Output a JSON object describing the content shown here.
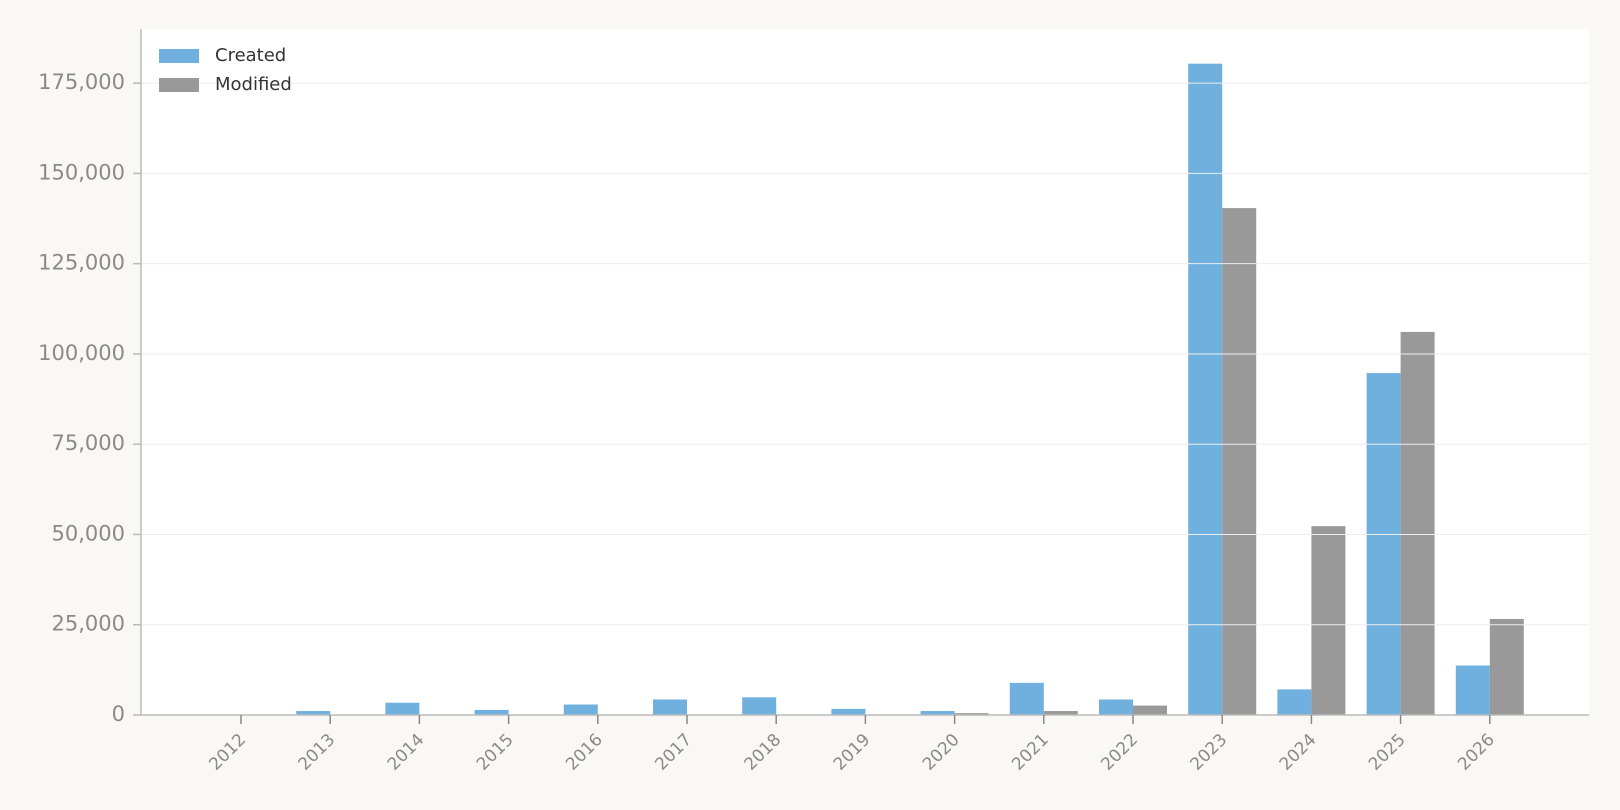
{
  "chart_data": {
    "type": "bar",
    "categories": [
      "2012",
      "2013",
      "2014",
      "2015",
      "2016",
      "2017",
      "2018",
      "2019",
      "2020",
      "2021",
      "2022",
      "2023",
      "2024",
      "2025",
      "2026"
    ],
    "series": [
      {
        "name": "Created",
        "color": "#6fb0de",
        "values": [
          0,
          1100,
          3400,
          1400,
          2900,
          4300,
          4900,
          1700,
          1100,
          8900,
          4300,
          180400,
          7100,
          94700,
          13700
        ]
      },
      {
        "name": "Modified",
        "color": "#999999",
        "values": [
          0,
          0,
          0,
          0,
          0,
          0,
          0,
          0,
          500,
          1100,
          2600,
          140400,
          52300,
          106100,
          26600
        ]
      }
    ],
    "ylim": [
      0,
      190000
    ],
    "yticks": [
      0,
      {
        "value": 25000,
        "label": "25,000"
      },
      {
        "value": 50000,
        "label": "50,000"
      },
      {
        "value": 75000,
        "label": "75,000"
      },
      {
        "value": 100000,
        "label": "100,000"
      },
      {
        "value": 125000,
        "label": "125,000"
      },
      {
        "value": 150000,
        "label": "150,000"
      },
      {
        "value": 175000,
        "label": "175,000"
      }
    ],
    "grid": true,
    "legend": "upper-left"
  }
}
